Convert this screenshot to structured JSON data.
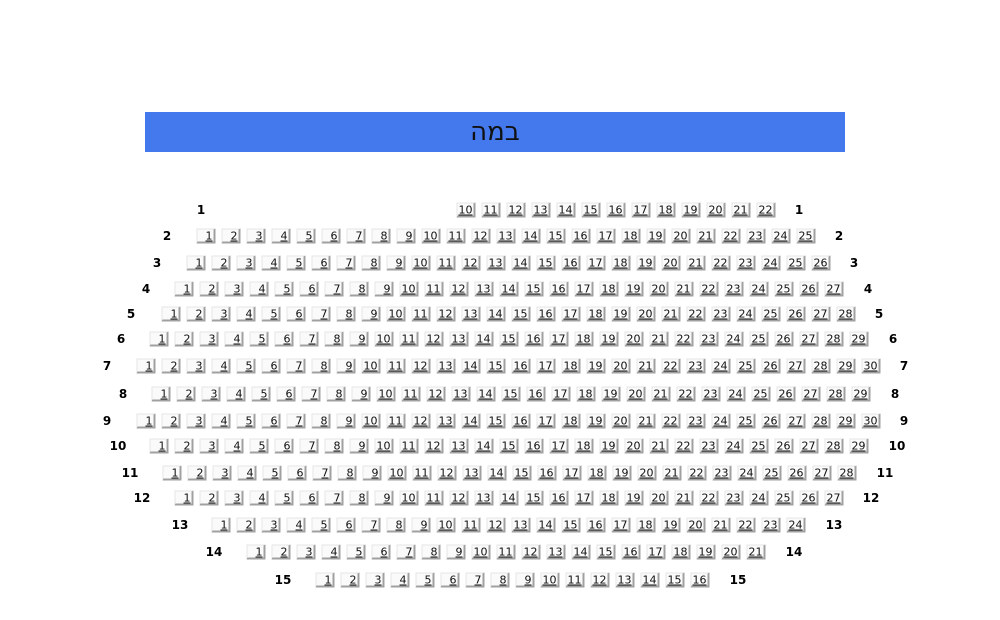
{
  "stage": {
    "label": "במה",
    "color": "#4479ee"
  },
  "rows": [
    {
      "row": "1",
      "first": 10,
      "last": 22
    },
    {
      "row": "2",
      "first": 1,
      "last": 25
    },
    {
      "row": "3",
      "first": 1,
      "last": 26
    },
    {
      "row": "4",
      "first": 1,
      "last": 27
    },
    {
      "row": "5",
      "first": 1,
      "last": 28
    },
    {
      "row": "6",
      "first": 1,
      "last": 29
    },
    {
      "row": "7",
      "first": 1,
      "last": 30
    },
    {
      "row": "8",
      "first": 1,
      "last": 29
    },
    {
      "row": "9",
      "first": 1,
      "last": 30
    },
    {
      "row": "10",
      "first": 1,
      "last": 29
    },
    {
      "row": "11",
      "first": 1,
      "last": 28
    },
    {
      "row": "12",
      "first": 1,
      "last": 27
    },
    {
      "row": "13",
      "first": 1,
      "last": 24
    },
    {
      "row": "14",
      "first": 1,
      "last": 21
    },
    {
      "row": "15",
      "first": 1,
      "last": 16
    }
  ]
}
